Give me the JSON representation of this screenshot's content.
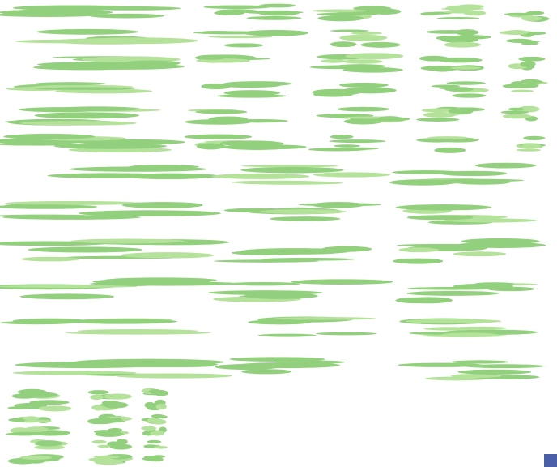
{
  "colors": {
    "background": "#ffffff",
    "blob": "#92d07e",
    "blob_light": "#b4e29a",
    "highlight": "#e4f5c4",
    "corner_square": "#4a5fa8"
  }
}
